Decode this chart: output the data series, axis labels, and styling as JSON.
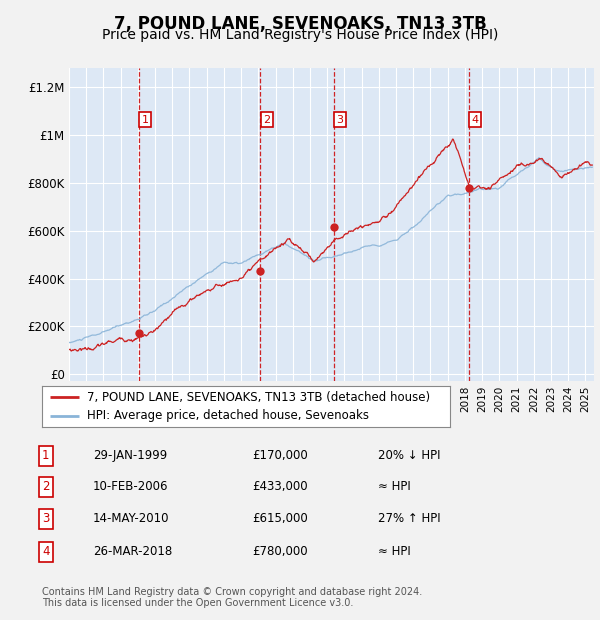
{
  "title": "7, POUND LANE, SEVENOAKS, TN13 3TB",
  "subtitle": "Price paid vs. HM Land Registry's House Price Index (HPI)",
  "title_fontsize": 12,
  "subtitle_fontsize": 10,
  "bg_color": "#f0f0f0",
  "plot_bg_color": "#dde8f5",
  "grid_color": "#ffffff",
  "hpi_line_color": "#8ab4d8",
  "price_line_color": "#cc2222",
  "marker_color": "#cc2222",
  "vline_color": "#cc0000",
  "yticks": [
    0,
    200000,
    400000,
    600000,
    800000,
    1000000,
    1200000
  ],
  "ytick_labels": [
    "£0",
    "£200K",
    "£400K",
    "£600K",
    "£800K",
    "£1M",
    "£1.2M"
  ],
  "xlim_start": 1995.0,
  "xlim_end": 2025.5,
  "ylim_min": -30000,
  "ylim_max": 1280000,
  "transactions": [
    {
      "num": 1,
      "year": 1999.08,
      "price": 170000,
      "date": "29-JAN-1999",
      "pct": "20%",
      "dir": "↓"
    },
    {
      "num": 2,
      "year": 2006.12,
      "price": 433000,
      "date": "10-FEB-2006",
      "pct": "≈",
      "dir": ""
    },
    {
      "num": 3,
      "year": 2010.37,
      "price": 615000,
      "date": "14-MAY-2010",
      "pct": "27%",
      "dir": "↑"
    },
    {
      "num": 4,
      "year": 2018.23,
      "price": 780000,
      "date": "26-MAR-2018",
      "pct": "≈",
      "dir": ""
    }
  ],
  "legend_line1": "7, POUND LANE, SEVENOAKS, TN13 3TB (detached house)",
  "legend_line2": "HPI: Average price, detached house, Sevenoaks",
  "footer1": "Contains HM Land Registry data © Crown copyright and database right 2024.",
  "footer2": "This data is licensed under the Open Government Licence v3.0."
}
